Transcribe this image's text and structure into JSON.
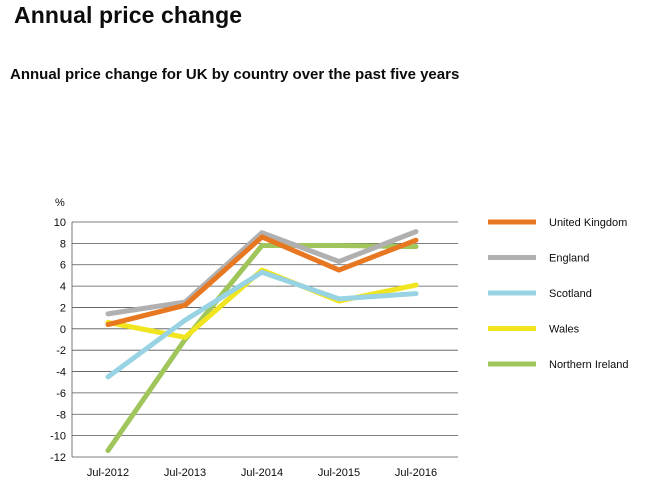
{
  "page": {
    "title": "Annual price change"
  },
  "chart_data": {
    "type": "line",
    "title": "Annual price change for UK by country over the past five years",
    "ylabel": "%",
    "xlabel": "",
    "categories": [
      "Jul-2012",
      "Jul-2013",
      "Jul-2014",
      "Jul-2015",
      "Jul-2016"
    ],
    "ylim": [
      -12,
      10
    ],
    "yticks": [
      10,
      8,
      6,
      4,
      2,
      0,
      -2,
      -4,
      -6,
      -8,
      -10,
      -12
    ],
    "grid": true,
    "legend_position": "right",
    "series": [
      {
        "name": "United Kingdom",
        "color": "#e87722",
        "values": [
          0.4,
          2.2,
          8.6,
          5.5,
          8.3
        ]
      },
      {
        "name": "England",
        "color": "#b1b0b0",
        "values": [
          1.4,
          2.5,
          9.0,
          6.3,
          9.1
        ]
      },
      {
        "name": "Scotland",
        "color": "#97d3e3",
        "values": [
          -4.5,
          0.8,
          5.3,
          2.8,
          3.3
        ]
      },
      {
        "name": "Wales",
        "color": "#f0e51e",
        "values": [
          0.6,
          -0.8,
          5.5,
          2.6,
          4.1
        ]
      },
      {
        "name": "Northern Ireland",
        "color": "#a0c55a",
        "values": [
          -11.4,
          -1.0,
          7.8,
          7.8,
          7.7
        ]
      }
    ]
  }
}
